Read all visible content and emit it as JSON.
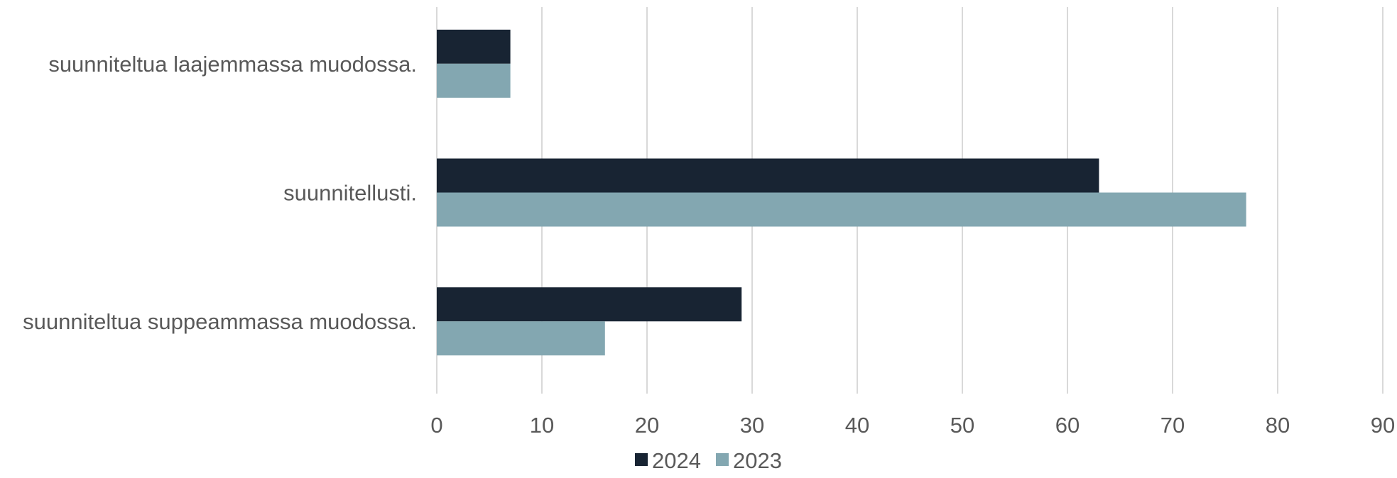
{
  "chart_data": {
    "type": "bar",
    "orientation": "horizontal",
    "categories": [
      "suunniteltua laajemmassa muodossa.",
      "suunnitellusti.",
      "suunniteltua suppeammassa muodossa."
    ],
    "series": [
      {
        "name": "2024",
        "color": "#182433",
        "values": [
          7,
          63,
          29
        ]
      },
      {
        "name": "2023",
        "color": "#83a7b1",
        "values": [
          7,
          77,
          16
        ]
      }
    ],
    "xlim": [
      0,
      90
    ],
    "xticks": [
      "0",
      "10",
      "20",
      "30",
      "40",
      "50",
      "60",
      "70",
      "80",
      "90"
    ],
    "grid": "vertical",
    "legend_position": "bottom"
  }
}
